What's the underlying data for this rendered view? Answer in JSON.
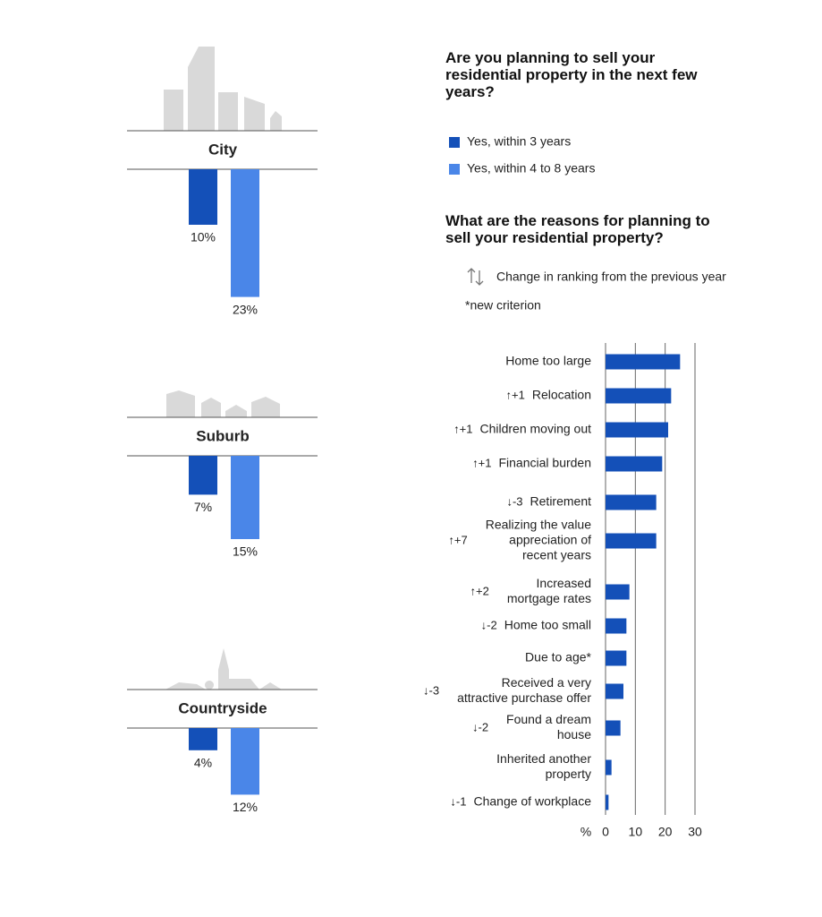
{
  "chart_data": [
    {
      "type": "grouped-column-down",
      "title": "Are you planning to sell your residential property in the next few years?",
      "categories": [
        "City",
        "Suburb",
        "Countryside"
      ],
      "series": [
        {
          "name": "Yes, within 3 years",
          "color": "#1450b8",
          "values": [
            10,
            7,
            4
          ],
          "value_labels": [
            "10%",
            "7%",
            "4%"
          ]
        },
        {
          "name": "Yes, within 4 to 8 years",
          "color": "#4a86e8",
          "values": [
            23,
            15,
            12
          ],
          "value_labels": [
            "23%",
            "15%",
            "12%"
          ]
        }
      ]
    },
    {
      "type": "hbar",
      "title": "What are the reasons for planning to sell your residential property?",
      "rank_note": "Change in ranking from the previous year",
      "footnote": "*new criterion",
      "x_unit": "%",
      "categories": [
        [
          "Home too large"
        ],
        [
          "Relocation"
        ],
        [
          "Children moving out"
        ],
        [
          "Financial burden"
        ],
        [
          "Retirement"
        ],
        [
          "Realizing the value",
          "appreciation of",
          "recent years"
        ],
        [
          "Increased",
          "mortgage rates"
        ],
        [
          "Home too small"
        ],
        [
          "Due to age*"
        ],
        [
          "Received a very",
          "attractive purchase offer"
        ],
        [
          "Found a dream",
          "house"
        ],
        [
          "Inherited another",
          "property"
        ],
        [
          "Change of workplace"
        ]
      ],
      "rank_changes": [
        null,
        "↑+1",
        "↑+1",
        "↑+1",
        "↓-3",
        "↑+7",
        "↑+2",
        "↓-2",
        null,
        "↓-3",
        "↓-2",
        null,
        "↓-1"
      ],
      "values": [
        25,
        22,
        21,
        19,
        17,
        17,
        8,
        7,
        7,
        6,
        5,
        2,
        1
      ],
      "color": "#1450b8",
      "xlim": [
        0,
        30
      ],
      "xticks": [
        0,
        10,
        20,
        30
      ],
      "grid": true
    }
  ]
}
